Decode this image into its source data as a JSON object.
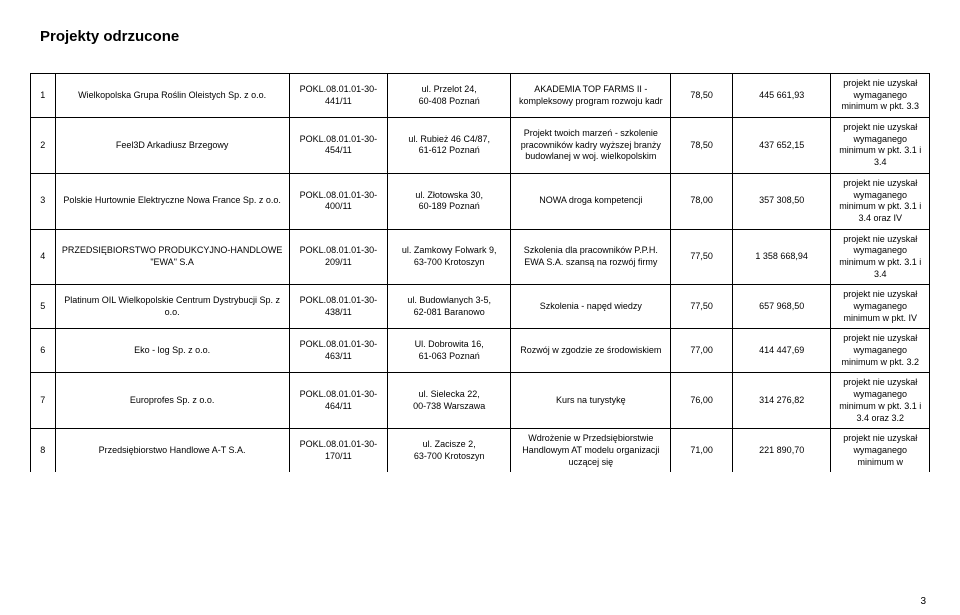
{
  "page_title": "Projekty odrzucone",
  "page_number": "3",
  "columns": {
    "count": 8
  },
  "rows": [
    {
      "n": "1",
      "beneficiary": "Wielkopolska Grupa Roślin Oleistych Sp. z o.o.",
      "code": "POKL.08.01.01-30-441/11",
      "address": "ul. Przelot 24,\n60-408 Poznań",
      "project": "AKADEMIA TOP FARMS II - kompleksowy program rozwoju kadr",
      "score": "78,50",
      "amount": "445 661,93",
      "reason": "projekt nie uzyskał wymaganego minimum w pkt. 3.3"
    },
    {
      "n": "2",
      "beneficiary": "Feel3D Arkadiusz Brzegowy",
      "code": "POKL.08.01.01-30-454/11",
      "address": "ul. Rubież 46 C4/87,\n61-612 Poznań",
      "project": "Projekt twoich marzeń - szkolenie pracowników kadry wyższej branży budowlanej w woj. wielkopolskim",
      "score": "78,50",
      "amount": "437 652,15",
      "reason": "projekt nie uzyskał wymaganego minimum w pkt. 3.1 i 3.4"
    },
    {
      "n": "3",
      "beneficiary": "Polskie Hurtownie Elektryczne Nowa France Sp. z o.o.",
      "code": "POKL.08.01.01-30-400/11",
      "address": "ul. Złotowska 30,\n60-189 Poznań",
      "project": "NOWA droga kompetencji",
      "score": "78,00",
      "amount": "357 308,50",
      "reason": "projekt nie uzyskał wymaganego minimum w pkt. 3.1 i 3.4 oraz IV"
    },
    {
      "n": "4",
      "beneficiary": "PRZEDSIĘBIORSTWO PRODUKCYJNO-HANDLOWE \"EWA\" S.A",
      "code": "POKL.08.01.01-30-209/11",
      "address": "ul. Zamkowy Folwark 9,\n63-700 Krotoszyn",
      "project": "Szkolenia dla pracowników P.P.H. EWA S.A. szansą na rozwój firmy",
      "score": "77,50",
      "amount": "1 358 668,94",
      "reason": "projekt nie uzyskał wymaganego minimum w pkt. 3.1 i 3.4"
    },
    {
      "n": "5",
      "beneficiary": "Platinum OIL Wielkopolskie Centrum Dystrybucji Sp. z o.o.",
      "code": "POKL.08.01.01-30-438/11",
      "address": "ul. Budowlanych 3-5,\n62-081 Baranowo",
      "project": "Szkolenia - napęd wiedzy",
      "score": "77,50",
      "amount": "657 968,50",
      "reason": "projekt nie uzyskał wymaganego minimum w pkt. IV"
    },
    {
      "n": "6",
      "beneficiary": "Eko - log Sp. z o.o.",
      "code": "POKL.08.01.01-30-463/11",
      "address": "Ul. Dobrowita 16,\n61-063 Poznań",
      "project": "Rozwój w zgodzie ze środowiskiem",
      "score": "77,00",
      "amount": "414 447,69",
      "reason": "projekt nie uzyskał wymaganego minimum w pkt. 3.2"
    },
    {
      "n": "7",
      "beneficiary": "Europrofes Sp. z o.o.",
      "code": "POKL.08.01.01-30-464/11",
      "address": "ul. Sielecka 22,\n00-738 Warszawa",
      "project": "Kurs na turystykę",
      "score": "76,00",
      "amount": "314 276,82",
      "reason": "projekt nie uzyskał wymaganego minimum w pkt. 3.1 i 3.4 oraz 3.2"
    },
    {
      "n": "8",
      "beneficiary": "Przedsiębiorstwo Handlowe A-T S.A.",
      "code": "POKL.08.01.01-30-170/11",
      "address": "ul. Zacisze 2,\n63-700 Krotoszyn",
      "project": "Wdrożenie w Przedsiębiorstwie Handlowym AT modelu organizacji uczącej się",
      "score": "71,00",
      "amount": "221 890,70",
      "reason": "projekt nie uzyskał wymaganego minimum w"
    }
  ]
}
